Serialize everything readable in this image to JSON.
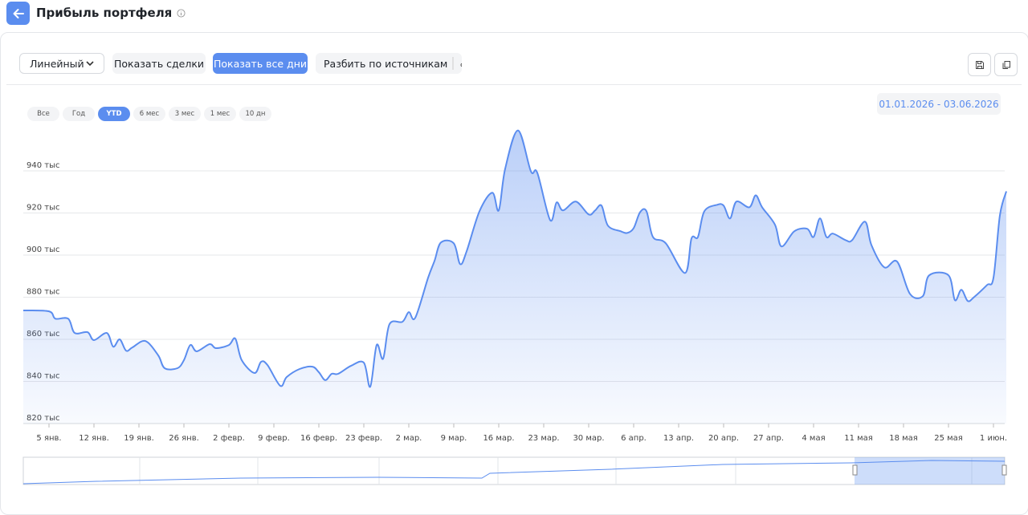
{
  "header": {
    "title": "Прибыль портфеля"
  },
  "toolbar": {
    "view": "Линейный",
    "buttons": [
      "Показать сделки",
      "Показать все дни",
      "Разбить по источникам"
    ],
    "active_button": 1
  },
  "ranges": {
    "items": [
      "Все",
      "Год",
      "YTD",
      "6 мес",
      "3 мес",
      "1 мес",
      "10 дн"
    ],
    "active": 2
  },
  "date_range": "01.01.2026 - 03.06.2026",
  "chart_data": {
    "type": "area",
    "color": "#5b8def",
    "grid": true,
    "x": [
      "2026-01-01",
      "2026-01-05",
      "2026-01-06",
      "2026-01-08",
      "2026-01-09",
      "2026-01-11",
      "2026-01-12",
      "2026-01-14",
      "2026-01-15",
      "2026-01-16",
      "2026-01-17",
      "2026-01-18",
      "2026-01-20",
      "2026-01-22",
      "2026-01-23",
      "2026-01-25",
      "2026-01-26",
      "2026-01-27",
      "2026-01-28",
      "2026-01-30",
      "2026-01-31",
      "2026-02-02",
      "2026-02-03",
      "2026-02-04",
      "2026-02-06",
      "2026-02-07",
      "2026-02-08",
      "2026-02-10",
      "2026-02-11",
      "2026-02-13",
      "2026-02-15",
      "2026-02-16",
      "2026-02-17",
      "2026-02-18",
      "2026-02-19",
      "2026-02-21",
      "2026-02-23",
      "2026-02-24",
      "2026-02-25",
      "2026-02-26",
      "2026-02-27",
      "2026-03-01",
      "2026-03-02",
      "2026-03-03",
      "2026-03-05",
      "2026-03-06",
      "2026-03-07",
      "2026-03-09",
      "2026-03-10",
      "2026-03-11",
      "2026-03-13",
      "2026-03-15",
      "2026-03-16",
      "2026-03-17",
      "2026-03-19",
      "2026-03-21",
      "2026-03-22",
      "2026-03-24",
      "2026-03-25",
      "2026-03-26",
      "2026-03-28",
      "2026-03-30",
      "2026-03-31",
      "2026-04-01",
      "2026-04-02",
      "2026-04-04",
      "2026-04-05",
      "2026-04-06",
      "2026-04-07",
      "2026-04-08",
      "2026-04-09",
      "2026-04-11",
      "2026-04-14",
      "2026-04-15",
      "2026-04-16",
      "2026-04-17",
      "2026-04-19",
      "2026-04-20",
      "2026-04-21",
      "2026-04-22",
      "2026-04-24",
      "2026-04-25",
      "2026-04-26",
      "2026-04-28",
      "2026-04-29",
      "2026-05-01",
      "2026-05-03",
      "2026-05-04",
      "2026-05-05",
      "2026-05-06",
      "2026-05-07",
      "2026-05-09",
      "2026-05-10",
      "2026-05-12",
      "2026-05-13",
      "2026-05-15",
      "2026-05-17",
      "2026-05-19",
      "2026-05-21",
      "2026-05-22",
      "2026-05-25",
      "2026-05-26",
      "2026-05-27",
      "2026-05-28",
      "2026-05-29",
      "2026-05-31",
      "2026-06-01",
      "2026-06-02",
      "2026-06-03"
    ],
    "values": [
      873.7,
      873.3,
      869.8,
      869.8,
      863.0,
      863.4,
      859.6,
      863.0,
      856.5,
      860.0,
      854.6,
      856.2,
      859.2,
      852.4,
      846.3,
      846.3,
      850.1,
      857.3,
      854.3,
      857.7,
      855.8,
      857.3,
      860.3,
      850.1,
      844.0,
      849.3,
      847.8,
      837.9,
      842.1,
      845.9,
      847.0,
      844.4,
      840.6,
      843.6,
      843.6,
      847.4,
      848.9,
      837.5,
      857.3,
      850.8,
      867.2,
      868.3,
      872.9,
      870.2,
      889.2,
      897.2,
      906.0,
      905.6,
      895.7,
      901.8,
      920.8,
      929.6,
      921.2,
      941.0,
      959.2,
      939.8,
      939.1,
      916.6,
      925.0,
      921.2,
      925.4,
      919.3,
      921.2,
      923.5,
      914.0,
      911.3,
      910.5,
      912.8,
      920.4,
      920.8,
      908.6,
      905.6,
      891.5,
      907.9,
      908.6,
      920.8,
      923.9,
      923.5,
      917.4,
      925.4,
      922.7,
      928.4,
      922.7,
      914.4,
      904.1,
      911.3,
      912.5,
      908.6,
      917.4,
      908.6,
      910.2,
      907.1,
      907.1,
      915.9,
      904.8,
      894.2,
      896.9,
      881.6,
      880.5,
      890.4,
      890.4,
      878.6,
      883.5,
      878.2,
      880.1,
      885.8,
      889.2,
      918.9,
      930.3
    ],
    "xlim": [
      "2026-01-01",
      "2026-06-03"
    ],
    "xticks": [
      {
        "value": "2026-01-05",
        "label": "5 янв."
      },
      {
        "value": "2026-01-12",
        "label": "12 янв."
      },
      {
        "value": "2026-01-19",
        "label": "19 янв."
      },
      {
        "value": "2026-01-26",
        "label": "26 янв."
      },
      {
        "value": "2026-02-02",
        "label": "2 февр."
      },
      {
        "value": "2026-02-09",
        "label": "9 февр."
      },
      {
        "value": "2026-02-16",
        "label": "16 февр."
      },
      {
        "value": "2026-02-23",
        "label": "23 февр."
      },
      {
        "value": "2026-03-02",
        "label": "2 мар."
      },
      {
        "value": "2026-03-09",
        "label": "9 мар."
      },
      {
        "value": "2026-03-16",
        "label": "16 мар."
      },
      {
        "value": "2026-03-23",
        "label": "23 мар."
      },
      {
        "value": "2026-03-30",
        "label": "30 мар."
      },
      {
        "value": "2026-04-06",
        "label": "6 апр."
      },
      {
        "value": "2026-04-13",
        "label": "13 апр."
      },
      {
        "value": "2026-04-20",
        "label": "20 апр."
      },
      {
        "value": "2026-04-27",
        "label": "27 апр."
      },
      {
        "value": "2026-05-04",
        "label": "4 мая"
      },
      {
        "value": "2026-05-11",
        "label": "11 мая"
      },
      {
        "value": "2026-05-18",
        "label": "18 мая"
      },
      {
        "value": "2026-05-25",
        "label": "25 мая"
      },
      {
        "value": "2026-06-01",
        "label": "1 июн."
      }
    ],
    "ylim": [
      820,
      960
    ],
    "yticks": [
      {
        "value": 820,
        "label": "820 тыс"
      },
      {
        "value": 840,
        "label": "840 тыс"
      },
      {
        "value": 860,
        "label": "860 тыс"
      },
      {
        "value": 880,
        "label": "880 тыс"
      },
      {
        "value": 900,
        "label": "900 тыс"
      },
      {
        "value": 920,
        "label": "920 тыс"
      },
      {
        "value": 940,
        "label": "940 тыс"
      }
    ]
  }
}
